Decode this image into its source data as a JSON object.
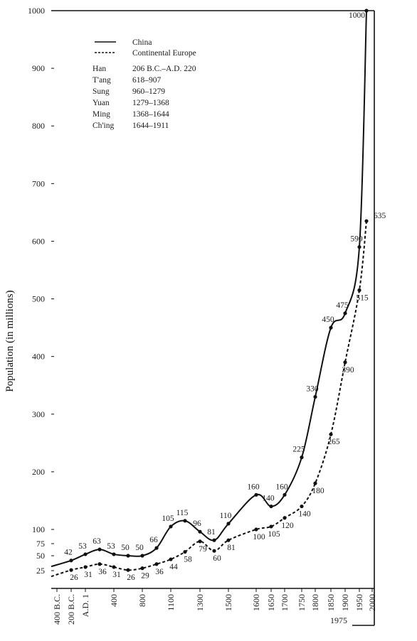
{
  "chart_data": {
    "type": "line",
    "ylabel": "Population (in millions)",
    "y_ticks": [
      25,
      50,
      75,
      100,
      200,
      300,
      400,
      500,
      600,
      700,
      800,
      900,
      1000
    ],
    "ylim": [
      0,
      1000
    ],
    "x_tick_labels": [
      "400 B.C.",
      "200 B.C.",
      "A.D. 1",
      "400",
      "800",
      "1100",
      "1300",
      "1500",
      "1600",
      "1650",
      "1700",
      "1750",
      "1800",
      "1850",
      "1900",
      "1950",
      "2000"
    ],
    "x_extra_label": "1975",
    "series": [
      {
        "name": "China",
        "points": [
          {
            "x": "200 B.C.",
            "y": 42,
            "label": "42"
          },
          {
            "x": "A.D. 1",
            "y": 53,
            "label": "53"
          },
          {
            "x": "200",
            "y": 63,
            "label": "63"
          },
          {
            "x": "400",
            "y": 53,
            "label": "53"
          },
          {
            "x": "600",
            "y": 50,
            "label": "50"
          },
          {
            "x": "800",
            "y": 50,
            "label": "50"
          },
          {
            "x": "1000",
            "y": 66,
            "label": "66"
          },
          {
            "x": "1100",
            "y": 105,
            "label": "105"
          },
          {
            "x": "1200",
            "y": 115,
            "label": "115"
          },
          {
            "x": "1300",
            "y": 96,
            "label": "96"
          },
          {
            "x": "1400",
            "y": 81,
            "label": "81"
          },
          {
            "x": "1500",
            "y": 110,
            "label": "110"
          },
          {
            "x": "1600",
            "y": 160,
            "label": "160"
          },
          {
            "x": "1650",
            "y": 140,
            "label": "140"
          },
          {
            "x": "1700",
            "y": 160,
            "label": "160"
          },
          {
            "x": "1750",
            "y": 225,
            "label": "225"
          },
          {
            "x": "1800",
            "y": 330,
            "label": "330"
          },
          {
            "x": "1850",
            "y": 450,
            "label": "450"
          },
          {
            "x": "1900",
            "y": 475,
            "label": "475"
          },
          {
            "x": "1950",
            "y": 590,
            "label": "590"
          },
          {
            "x": "1975",
            "y": 1000,
            "label": "1000"
          }
        ]
      },
      {
        "name": "Continental Europe",
        "points": [
          {
            "x": "200 B.C.",
            "y": 26,
            "label": "26"
          },
          {
            "x": "A.D. 1",
            "y": 31,
            "label": "31"
          },
          {
            "x": "200",
            "y": 36,
            "label": "36"
          },
          {
            "x": "400",
            "y": 31,
            "label": "31"
          },
          {
            "x": "600",
            "y": 26,
            "label": "26"
          },
          {
            "x": "800",
            "y": 29,
            "label": "29"
          },
          {
            "x": "1000",
            "y": 36,
            "label": "36"
          },
          {
            "x": "1100",
            "y": 44,
            "label": "44"
          },
          {
            "x": "1200",
            "y": 58,
            "label": "58"
          },
          {
            "x": "1300",
            "y": 79,
            "label": "79"
          },
          {
            "x": "1400",
            "y": 60,
            "label": "60"
          },
          {
            "x": "1500",
            "y": 81,
            "label": "81"
          },
          {
            "x": "1600",
            "y": 100,
            "label": "100"
          },
          {
            "x": "1650",
            "y": 105,
            "label": "105"
          },
          {
            "x": "1700",
            "y": 120,
            "label": "120"
          },
          {
            "x": "1750",
            "y": 140,
            "label": "140"
          },
          {
            "x": "1800",
            "y": 180,
            "label": "180"
          },
          {
            "x": "1850",
            "y": 265,
            "label": "265"
          },
          {
            "x": "1900",
            "y": 390,
            "label": "390"
          },
          {
            "x": "1950",
            "y": 515,
            "label": "515"
          },
          {
            "x": "1975",
            "y": 635,
            "label": "635"
          }
        ]
      }
    ],
    "legend": {
      "placement": "top-left",
      "series": [
        {
          "name": "China",
          "style": "solid"
        },
        {
          "name": "Continental Europe",
          "style": "dashed"
        }
      ],
      "dynasties": [
        {
          "name": "Han",
          "years": "206 B.C.–A.D. 220"
        },
        {
          "name": "T'ang",
          "years": "618–907"
        },
        {
          "name": "Sung",
          "years": "960–1279"
        },
        {
          "name": "Yuan",
          "years": "1279–1368"
        },
        {
          "name": "Ming",
          "years": "1368–1644"
        },
        {
          "name": "Ch'ing",
          "years": "1644–1911"
        }
      ]
    },
    "grid": false
  }
}
